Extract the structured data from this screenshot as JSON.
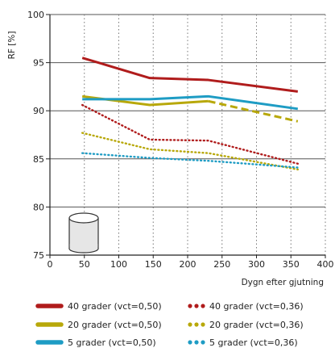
{
  "chart_data": {
    "type": "line",
    "title": "",
    "xlabel": "Dygn efter gjutning",
    "ylabel": "RF [%]",
    "xlim": [
      0,
      400
    ],
    "ylim": [
      75,
      100
    ],
    "x_ticks": [
      0,
      50,
      100,
      150,
      200,
      250,
      300,
      350,
      400
    ],
    "y_ticks": [
      75,
      80,
      85,
      90,
      95,
      100
    ],
    "grid": "vertical dotted, horizontal solid",
    "legend_placement": "bottom",
    "series": [
      {
        "name": "40 grader (vct=0,50)",
        "color": "#b01c1c",
        "style": "solid",
        "points": [
          [
            47,
            95.5
          ],
          [
            145,
            93.4
          ],
          [
            230,
            93.2
          ],
          [
            360,
            92.0
          ]
        ]
      },
      {
        "name": "20 grader (vct=0,50)",
        "color": "#b8a80a",
        "style": "solid-then-dashed",
        "dash_from_index": 2,
        "points": [
          [
            47,
            91.5
          ],
          [
            145,
            90.6
          ],
          [
            230,
            91.0
          ],
          [
            360,
            88.9
          ]
        ]
      },
      {
        "name": "5 grader (vct=0,50)",
        "color": "#1e9cc4",
        "style": "solid",
        "points": [
          [
            47,
            91.2
          ],
          [
            145,
            91.2
          ],
          [
            230,
            91.5
          ],
          [
            360,
            90.2
          ]
        ]
      },
      {
        "name": "40 grader (vct=0,36)",
        "color": "#b01c1c",
        "style": "dotted",
        "points": [
          [
            47,
            90.6
          ],
          [
            145,
            87.0
          ],
          [
            230,
            86.9
          ],
          [
            360,
            84.5
          ]
        ]
      },
      {
        "name": "20 grader (vct=0,36)",
        "color": "#b8a80a",
        "style": "dotted",
        "points": [
          [
            47,
            87.7
          ],
          [
            145,
            86.0
          ],
          [
            230,
            85.6
          ],
          [
            360,
            83.9
          ]
        ]
      },
      {
        "name": "5 grader (vct=0,36)",
        "color": "#1e9cc4",
        "style": "dotted",
        "points": [
          [
            47,
            85.6
          ],
          [
            145,
            85.1
          ],
          [
            230,
            84.8
          ],
          [
            360,
            84.1
          ]
        ]
      }
    ],
    "annotation_icon": "cylinder-icon"
  }
}
